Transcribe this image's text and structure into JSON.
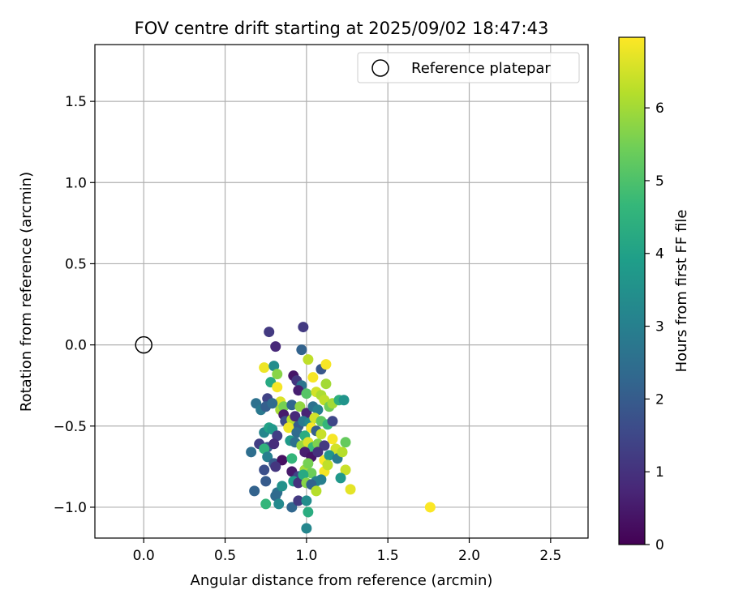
{
  "chart_data": {
    "type": "scatter",
    "title": "FOV centre drift starting at 2025/09/02 18:47:43",
    "xlabel": "Angular distance from reference (arcmin)",
    "ylabel": "Rotation from reference (arcmin)",
    "xlim": [
      -0.3,
      2.73
    ],
    "ylim": [
      -1.19,
      1.85
    ],
    "xticks": [
      0.0,
      0.5,
      1.0,
      1.5,
      2.0,
      2.5
    ],
    "xtick_labels": [
      "0.0",
      "0.5",
      "1.0",
      "1.5",
      "2.0",
      "2.5"
    ],
    "yticks": [
      -1.0,
      -0.5,
      0.0,
      0.5,
      1.0,
      1.5
    ],
    "ytick_labels": [
      "−1.0",
      "−0.5",
      "0.0",
      "0.5",
      "1.0",
      "1.5"
    ],
    "grid": true,
    "legend": {
      "label": "Reference platepar",
      "placement": "top-right"
    },
    "reference_point": {
      "x": 0.0,
      "y": 0.0
    },
    "colorbar": {
      "label": "Hours from first FF file",
      "range": [
        0,
        6.97
      ],
      "ticks": [
        0,
        1,
        2,
        3,
        4,
        5,
        6
      ],
      "tick_labels": [
        "0",
        "1",
        "2",
        "3",
        "4",
        "5",
        "6"
      ],
      "colormap": [
        "#440154",
        "#482878",
        "#3e4989",
        "#31688e",
        "#26828e",
        "#1f9e89",
        "#35b779",
        "#6ece58",
        "#b5de2b",
        "#fde725"
      ]
    },
    "points": [
      [
        0.77,
        0.08,
        1.2
      ],
      [
        0.98,
        0.11,
        1.2
      ],
      [
        0.81,
        -0.01,
        0.8
      ],
      [
        0.97,
        -0.03,
        2.2
      ],
      [
        0.74,
        -0.14,
        6.8
      ],
      [
        0.8,
        -0.13,
        3.4
      ],
      [
        1.01,
        -0.09,
        6.3
      ],
      [
        1.09,
        -0.15,
        1.9
      ],
      [
        1.12,
        -0.12,
        6.9
      ],
      [
        0.78,
        -0.23,
        4.2
      ],
      [
        0.82,
        -0.18,
        5.7
      ],
      [
        0.92,
        -0.19,
        0.4
      ],
      [
        0.94,
        -0.22,
        1.1
      ],
      [
        0.97,
        -0.25,
        2.7
      ],
      [
        1.04,
        -0.2,
        6.9
      ],
      [
        1.12,
        -0.24,
        6.0
      ],
      [
        0.76,
        -0.33,
        1.4
      ],
      [
        0.82,
        -0.26,
        6.9
      ],
      [
        0.84,
        -0.35,
        6.6
      ],
      [
        0.95,
        -0.28,
        0.6
      ],
      [
        1.0,
        -0.3,
        5.1
      ],
      [
        1.06,
        -0.29,
        6.5
      ],
      [
        1.09,
        -0.31,
        6.1
      ],
      [
        1.11,
        -0.34,
        6.3
      ],
      [
        0.69,
        -0.36,
        2.6
      ],
      [
        0.72,
        -0.4,
        2.8
      ],
      [
        0.75,
        -0.38,
        2.1
      ],
      [
        0.79,
        -0.36,
        2.4
      ],
      [
        0.84,
        -0.4,
        6.0
      ],
      [
        0.86,
        -0.38,
        5.5
      ],
      [
        0.91,
        -0.37,
        2.3
      ],
      [
        0.96,
        -0.38,
        5.8
      ],
      [
        1.0,
        -0.42,
        0.7
      ],
      [
        1.04,
        -0.38,
        2.6
      ],
      [
        1.07,
        -0.4,
        3.0
      ],
      [
        1.14,
        -0.38,
        5.4
      ],
      [
        1.16,
        -0.36,
        6.0
      ],
      [
        1.2,
        -0.34,
        4.4
      ],
      [
        1.23,
        -0.34,
        3.6
      ],
      [
        0.86,
        -0.43,
        0.5
      ],
      [
        0.87,
        -0.47,
        1.6
      ],
      [
        0.91,
        -0.46,
        6.2
      ],
      [
        0.93,
        -0.44,
        0.8
      ],
      [
        0.95,
        -0.5,
        2.0
      ],
      [
        0.98,
        -0.47,
        2.9
      ],
      [
        1.02,
        -0.48,
        3.3
      ],
      [
        1.05,
        -0.45,
        6.5
      ],
      [
        1.09,
        -0.47,
        5.2
      ],
      [
        1.13,
        -0.49,
        4.6
      ],
      [
        1.16,
        -0.47,
        1.5
      ],
      [
        0.74,
        -0.54,
        3.2
      ],
      [
        0.77,
        -0.51,
        4.0
      ],
      [
        0.79,
        -0.52,
        3.7
      ],
      [
        0.82,
        -0.56,
        1.3
      ],
      [
        0.89,
        -0.51,
        6.8
      ],
      [
        0.94,
        -0.54,
        2.4
      ],
      [
        0.99,
        -0.56,
        4.3
      ],
      [
        1.03,
        -0.51,
        6.9
      ],
      [
        1.06,
        -0.53,
        2.1
      ],
      [
        1.09,
        -0.55,
        6.4
      ],
      [
        0.71,
        -0.61,
        1.3
      ],
      [
        0.76,
        -0.63,
        1.9
      ],
      [
        0.8,
        -0.61,
        0.9
      ],
      [
        0.9,
        -0.59,
        3.8
      ],
      [
        0.93,
        -0.6,
        2.6
      ],
      [
        0.97,
        -0.62,
        5.9
      ],
      [
        1.01,
        -0.6,
        6.6
      ],
      [
        1.04,
        -0.63,
        4.7
      ],
      [
        1.07,
        -0.61,
        5.6
      ],
      [
        1.11,
        -0.62,
        1.2
      ],
      [
        1.16,
        -0.58,
        6.9
      ],
      [
        1.18,
        -0.64,
        6.5
      ],
      [
        1.24,
        -0.6,
        5.3
      ],
      [
        0.66,
        -0.66,
        2.5
      ],
      [
        0.74,
        -0.64,
        4.5
      ],
      [
        0.76,
        -0.69,
        3.0
      ],
      [
        0.8,
        -0.73,
        2.0
      ],
      [
        0.85,
        -0.71,
        0.3
      ],
      [
        0.91,
        -0.7,
        4.6
      ],
      [
        0.99,
        -0.66,
        0.6
      ],
      [
        1.03,
        -0.69,
        0.4
      ],
      [
        1.07,
        -0.66,
        1.0
      ],
      [
        1.11,
        -0.71,
        6.9
      ],
      [
        1.14,
        -0.68,
        3.6
      ],
      [
        1.19,
        -0.7,
        2.9
      ],
      [
        1.22,
        -0.66,
        6.2
      ],
      [
        0.74,
        -0.77,
        1.7
      ],
      [
        0.81,
        -0.75,
        1.1
      ],
      [
        0.91,
        -0.78,
        0.5
      ],
      [
        0.95,
        -0.81,
        1.4
      ],
      [
        0.99,
        -0.77,
        6.0
      ],
      [
        1.01,
        -0.73,
        5.5
      ],
      [
        1.03,
        -0.79,
        5.4
      ],
      [
        1.06,
        -0.84,
        3.1
      ],
      [
        1.11,
        -0.78,
        6.9
      ],
      [
        1.13,
        -0.74,
        6.3
      ],
      [
        1.24,
        -0.77,
        6.4
      ],
      [
        0.75,
        -0.84,
        2.0
      ],
      [
        0.82,
        -0.91,
        2.6
      ],
      [
        0.85,
        -0.87,
        3.5
      ],
      [
        0.92,
        -0.84,
        3.9
      ],
      [
        0.95,
        -0.85,
        1.0
      ],
      [
        0.98,
        -0.8,
        4.2
      ],
      [
        1.0,
        -0.85,
        5.7
      ],
      [
        1.03,
        -0.86,
        2.2
      ],
      [
        1.06,
        -0.9,
        6.2
      ],
      [
        1.09,
        -0.83,
        3.0
      ],
      [
        1.21,
        -0.82,
        3.7
      ],
      [
        1.27,
        -0.89,
        6.7
      ],
      [
        0.68,
        -0.9,
        2.2
      ],
      [
        0.75,
        -0.98,
        4.6
      ],
      [
        0.81,
        -0.93,
        2.4
      ],
      [
        0.83,
        -0.98,
        3.3
      ],
      [
        0.91,
        -1.0,
        2.3
      ],
      [
        0.95,
        -0.96,
        1.2
      ],
      [
        1.0,
        -0.96,
        3.4
      ],
      [
        1.01,
        -1.03,
        4.3
      ],
      [
        1.0,
        -1.13,
        3.2
      ],
      [
        1.76,
        -1.0,
        6.95
      ]
    ]
  }
}
